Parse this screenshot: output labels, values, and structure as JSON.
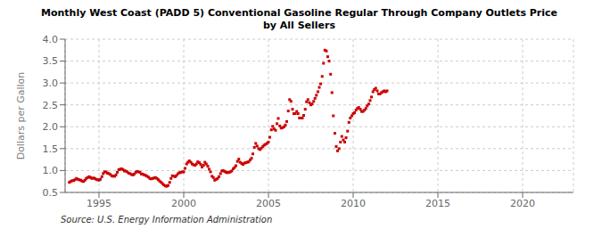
{
  "chart_data": {
    "type": "scatter",
    "title": "Monthly West Coast (PADD 5) Conventional Gasoline Regular Through Company Outlets Price\nby All Sellers",
    "y_label": "Dollars per Gallon",
    "annotation": "Source: U.S. Energy Information Administration",
    "color": "#cc0000",
    "marker": "square",
    "grid": true,
    "xlim": [
      1993.0,
      2023.0
    ],
    "ylim": [
      0.5,
      4.0
    ],
    "xticks": [
      1995,
      2000,
      2005,
      2010,
      2015,
      2020
    ],
    "yticks": [
      0.5,
      {
        "value": 1.0,
        "label": "1.0"
      },
      1.5,
      {
        "value": 2.0,
        "label": "2.0"
      },
      2.5,
      {
        "value": 3.0,
        "label": "3.0"
      },
      3.5,
      {
        "value": 4.0,
        "label": "4.0"
      }
    ],
    "x": [
      1993.25,
      1993.33,
      1993.42,
      1993.5,
      1993.58,
      1993.67,
      1993.75,
      1993.83,
      1993.92,
      1994.0,
      1994.08,
      1994.17,
      1994.25,
      1994.33,
      1994.42,
      1994.5,
      1994.58,
      1994.67,
      1994.75,
      1994.83,
      1994.92,
      1995.0,
      1995.08,
      1995.17,
      1995.25,
      1995.33,
      1995.42,
      1995.5,
      1995.58,
      1995.67,
      1995.75,
      1995.83,
      1995.92,
      1996.0,
      1996.08,
      1996.17,
      1996.25,
      1996.33,
      1996.42,
      1996.5,
      1996.58,
      1996.67,
      1996.75,
      1996.83,
      1996.92,
      1997.0,
      1997.08,
      1997.17,
      1997.25,
      1997.33,
      1997.42,
      1997.5,
      1997.58,
      1997.67,
      1997.75,
      1997.83,
      1997.92,
      1998.0,
      1998.08,
      1998.17,
      1998.25,
      1998.33,
      1998.42,
      1998.5,
      1998.58,
      1998.67,
      1998.75,
      1998.83,
      1998.92,
      1999.0,
      1999.08,
      1999.17,
      1999.25,
      1999.33,
      1999.42,
      1999.5,
      1999.58,
      1999.67,
      1999.75,
      1999.83,
      1999.92,
      2000.0,
      2000.08,
      2000.17,
      2000.25,
      2000.33,
      2000.42,
      2000.5,
      2000.58,
      2000.67,
      2000.75,
      2000.83,
      2000.92,
      2001.0,
      2001.08,
      2001.17,
      2001.25,
      2001.33,
      2001.42,
      2001.5,
      2001.58,
      2001.67,
      2001.75,
      2001.83,
      2001.92,
      2002.0,
      2002.08,
      2002.17,
      2002.25,
      2002.33,
      2002.42,
      2002.5,
      2002.58,
      2002.67,
      2002.75,
      2002.83,
      2002.92,
      2003.0,
      2003.08,
      2003.17,
      2003.25,
      2003.33,
      2003.42,
      2003.5,
      2003.58,
      2003.67,
      2003.75,
      2003.83,
      2003.92,
      2004.0,
      2004.08,
      2004.17,
      2004.25,
      2004.33,
      2004.42,
      2004.5,
      2004.58,
      2004.67,
      2004.75,
      2004.83,
      2004.92,
      2005.0,
      2005.08,
      2005.17,
      2005.25,
      2005.33,
      2005.42,
      2005.5,
      2005.58,
      2005.67,
      2005.75,
      2005.83,
      2005.92,
      2006.0,
      2006.08,
      2006.17,
      2006.25,
      2006.33,
      2006.42,
      2006.5,
      2006.58,
      2006.67,
      2006.75,
      2006.83,
      2006.92,
      2007.0,
      2007.08,
      2007.17,
      2007.25,
      2007.33,
      2007.42,
      2007.5,
      2007.58,
      2007.67,
      2007.75,
      2007.83,
      2007.92,
      2008.0,
      2008.08,
      2008.17,
      2008.25,
      2008.33,
      2008.42,
      2008.5,
      2008.58,
      2008.67,
      2008.75,
      2008.83,
      2008.92,
      2009.0,
      2009.08,
      2009.17,
      2009.25,
      2009.33,
      2009.42,
      2009.5,
      2009.58,
      2009.67,
      2009.75,
      2009.83,
      2009.92,
      2010.0,
      2010.08,
      2010.17,
      2010.25,
      2010.33,
      2010.42,
      2010.5,
      2010.58,
      2010.67,
      2010.75,
      2010.83,
      2010.92,
      2011.0,
      2011.08,
      2011.17,
      2011.25,
      2011.33,
      2011.42,
      2011.5,
      2011.58,
      2011.67,
      2011.75,
      2011.83,
      2011.92,
      2012.0
    ],
    "values": [
      0.73,
      0.75,
      0.77,
      0.77,
      0.79,
      0.82,
      0.8,
      0.79,
      0.78,
      0.76,
      0.75,
      0.78,
      0.82,
      0.84,
      0.86,
      0.84,
      0.82,
      0.83,
      0.82,
      0.8,
      0.79,
      0.78,
      0.8,
      0.86,
      0.93,
      0.97,
      0.97,
      0.94,
      0.93,
      0.91,
      0.88,
      0.87,
      0.87,
      0.9,
      0.96,
      1.02,
      1.03,
      1.04,
      1.02,
      0.99,
      0.99,
      0.97,
      0.94,
      0.93,
      0.91,
      0.9,
      0.92,
      0.96,
      0.98,
      0.97,
      0.96,
      0.92,
      0.92,
      0.9,
      0.89,
      0.87,
      0.85,
      0.82,
      0.81,
      0.82,
      0.83,
      0.84,
      0.82,
      0.79,
      0.76,
      0.73,
      0.7,
      0.67,
      0.65,
      0.64,
      0.66,
      0.73,
      0.82,
      0.88,
      0.87,
      0.86,
      0.89,
      0.93,
      0.95,
      0.96,
      0.97,
      0.97,
      1.05,
      1.15,
      1.19,
      1.22,
      1.19,
      1.15,
      1.13,
      1.12,
      1.15,
      1.2,
      1.18,
      1.14,
      1.08,
      1.12,
      1.19,
      1.15,
      1.1,
      1.03,
      0.97,
      0.87,
      0.84,
      0.78,
      0.8,
      0.82,
      0.86,
      0.93,
      0.99,
      1.0,
      0.98,
      0.96,
      0.95,
      0.96,
      0.97,
      0.99,
      1.04,
      1.07,
      1.11,
      1.21,
      1.26,
      1.19,
      1.16,
      1.14,
      1.17,
      1.18,
      1.19,
      1.2,
      1.24,
      1.28,
      1.38,
      1.53,
      1.62,
      1.56,
      1.5,
      1.48,
      1.51,
      1.55,
      1.58,
      1.6,
      1.62,
      1.65,
      1.76,
      1.93,
      2.01,
      1.95,
      1.92,
      2.07,
      2.19,
      2.02,
      1.97,
      1.98,
      2.0,
      2.04,
      2.12,
      2.36,
      2.62,
      2.58,
      2.4,
      2.3,
      2.3,
      2.35,
      2.3,
      2.2,
      2.2,
      2.2,
      2.26,
      2.4,
      2.57,
      2.62,
      2.55,
      2.5,
      2.52,
      2.58,
      2.65,
      2.72,
      2.8,
      2.9,
      2.98,
      3.15,
      3.45,
      3.75,
      3.73,
      3.6,
      3.5,
      3.2,
      2.78,
      2.25,
      1.85,
      1.55,
      1.45,
      1.5,
      1.65,
      1.78,
      1.7,
      1.65,
      1.75,
      1.9,
      2.1,
      2.2,
      2.25,
      2.3,
      2.32,
      2.38,
      2.42,
      2.44,
      2.4,
      2.35,
      2.35,
      2.38,
      2.42,
      2.48,
      2.52,
      2.6,
      2.68,
      2.8,
      2.85,
      2.88,
      2.82,
      2.75,
      2.75,
      2.78,
      2.8,
      2.82,
      2.8,
      2.82
    ]
  }
}
